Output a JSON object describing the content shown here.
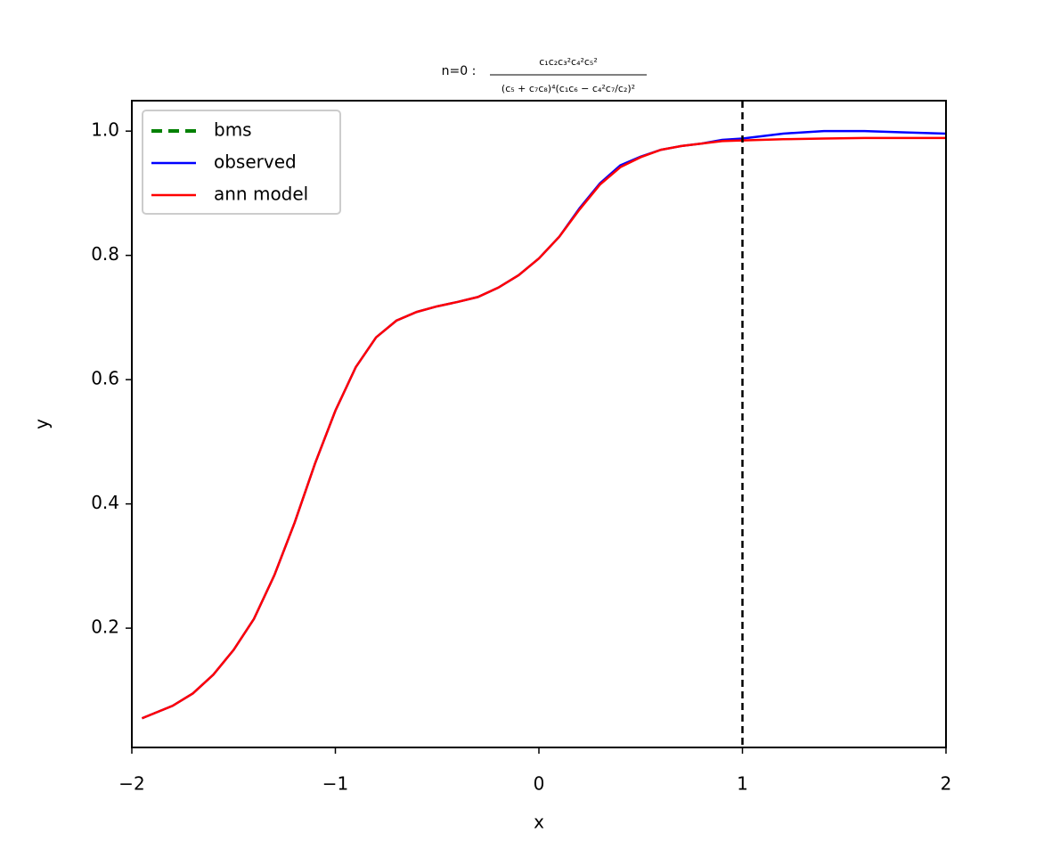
{
  "chart_data": {
    "type": "line",
    "title": "n=0 :",
    "title_formula": {
      "numerator": "c₁c₂c₃²c₄²c₅²",
      "denominator": "(c₅ + c₇c₈)⁴(c₁c₆ − c₄²c₇/c₂)²"
    },
    "xlabel": "x",
    "ylabel": "y",
    "x": [
      -1.95,
      -1.8,
      -1.7,
      -1.6,
      -1.5,
      -1.4,
      -1.3,
      -1.2,
      -1.1,
      -1.0,
      -0.9,
      -0.8,
      -0.7,
      -0.6,
      -0.5,
      -0.4,
      -0.3,
      -0.2,
      -0.1,
      0.0,
      0.1,
      0.2,
      0.3,
      0.4,
      0.5,
      0.6,
      0.7,
      0.8,
      0.9,
      1.0,
      1.2,
      1.4,
      1.6,
      1.8,
      2.0
    ],
    "series": [
      {
        "name": "bms",
        "color": "#008000",
        "dashed": true,
        "values": [
          null,
          null,
          null,
          null,
          null,
          null,
          null,
          null,
          null,
          null,
          null,
          null,
          null,
          null,
          null,
          null,
          null,
          null,
          null,
          null,
          null,
          null,
          null,
          null,
          null,
          null,
          null,
          null,
          null,
          null,
          null,
          null,
          null,
          null,
          null
        ]
      },
      {
        "name": "observed",
        "color": "#0000ff",
        "values": [
          0.055,
          0.075,
          0.095,
          0.125,
          0.165,
          0.215,
          0.285,
          0.37,
          0.465,
          0.55,
          0.62,
          0.668,
          0.695,
          0.709,
          0.718,
          0.725,
          0.733,
          0.748,
          0.768,
          0.795,
          0.83,
          0.876,
          0.916,
          0.945,
          0.959,
          0.97,
          0.976,
          0.98,
          0.986,
          0.988,
          0.996,
          1.0,
          1.0,
          0.998,
          0.996
        ]
      },
      {
        "name": "ann model",
        "color": "#ff0000",
        "values": [
          0.055,
          0.075,
          0.095,
          0.125,
          0.165,
          0.215,
          0.285,
          0.37,
          0.465,
          0.55,
          0.62,
          0.668,
          0.695,
          0.709,
          0.718,
          0.725,
          0.733,
          0.748,
          0.768,
          0.795,
          0.83,
          0.874,
          0.914,
          0.942,
          0.958,
          0.97,
          0.976,
          0.98,
          0.984,
          0.985,
          0.987,
          0.988,
          0.989,
          0.989,
          0.989
        ]
      }
    ],
    "vline": {
      "x": 1,
      "color": "#000000",
      "dashed": true
    },
    "xlim": [
      -2,
      2
    ],
    "xticks": [
      {
        "value": -2,
        "label": "−2"
      },
      {
        "value": -1,
        "label": "−1"
      },
      0,
      1,
      2
    ],
    "ylim": [
      0.008,
      1.049
    ],
    "yticks": [
      0.2,
      0.4,
      0.6,
      0.8,
      {
        "value": 1.0,
        "label": "1.0"
      }
    ],
    "grid": false,
    "legend": "upper left"
  }
}
